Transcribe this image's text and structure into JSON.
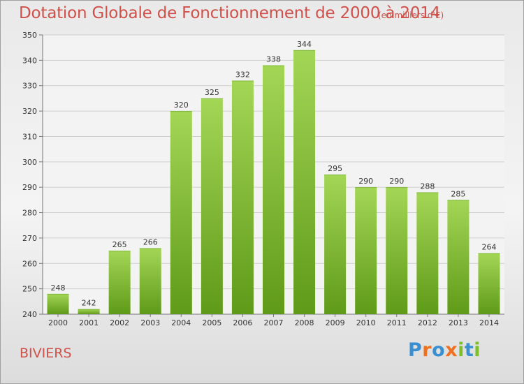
{
  "title": "Dotation Globale de Fonctionnement de 2000 à 2014",
  "unit_note": "(en milliers d'€)",
  "commune": "BIVIERS",
  "logo_text": "Proxiti",
  "colors": {
    "title": "#d0504a",
    "bar_top": "#a4d656",
    "bar_bottom": "#5f9a18",
    "grid": "#cfcfcf"
  },
  "chart_data": {
    "type": "bar",
    "title": "Dotation Globale de Fonctionnement de 2000 à 2014",
    "subtitle": "(en milliers d'€)",
    "xlabel": "",
    "ylabel": "",
    "categories": [
      "2000",
      "2001",
      "2002",
      "2003",
      "2004",
      "2005",
      "2006",
      "2007",
      "2008",
      "2009",
      "2010",
      "2011",
      "2012",
      "2013",
      "2014"
    ],
    "values": [
      248,
      242,
      265,
      266,
      320,
      325,
      332,
      338,
      344,
      295,
      290,
      290,
      288,
      285,
      264
    ],
    "ylim": [
      240,
      350
    ],
    "yticks": [
      240,
      250,
      260,
      270,
      280,
      290,
      300,
      310,
      320,
      330,
      340,
      350
    ],
    "grid": true,
    "data_labels": true
  }
}
